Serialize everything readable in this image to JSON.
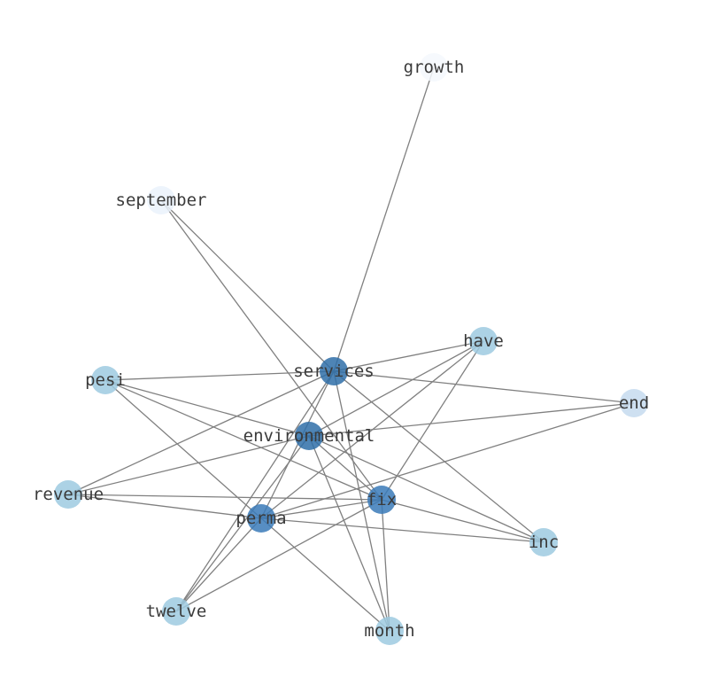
{
  "graph": {
    "nodes": [
      {
        "id": "growth",
        "label": "growth",
        "color": "#f4f8fd"
      },
      {
        "id": "september",
        "label": "september",
        "color": "#eaf2fb"
      },
      {
        "id": "have",
        "label": "have",
        "color": "#9ecae1"
      },
      {
        "id": "services",
        "label": "services",
        "color": "#2f6ea8"
      },
      {
        "id": "pesi",
        "label": "pesi",
        "color": "#9ecae1"
      },
      {
        "id": "end",
        "label": "end",
        "color": "#c6dbef"
      },
      {
        "id": "environmental",
        "label": "environmental",
        "color": "#2f6ea8"
      },
      {
        "id": "revenue",
        "label": "revenue",
        "color": "#9ecae1"
      },
      {
        "id": "fix",
        "label": "fix",
        "color": "#3a7ab8"
      },
      {
        "id": "perma",
        "label": "perma",
        "color": "#3a7ab8"
      },
      {
        "id": "inc",
        "label": "inc",
        "color": "#9ecae1"
      },
      {
        "id": "twelve",
        "label": "twelve",
        "color": "#9ecae1"
      },
      {
        "id": "month",
        "label": "month",
        "color": "#9ecae1"
      }
    ],
    "edges": [
      [
        "growth",
        "services"
      ],
      [
        "september",
        "services"
      ],
      [
        "september",
        "fix"
      ],
      [
        "services",
        "pesi"
      ],
      [
        "services",
        "have"
      ],
      [
        "services",
        "end"
      ],
      [
        "services",
        "revenue"
      ],
      [
        "services",
        "inc"
      ],
      [
        "services",
        "month"
      ],
      [
        "services",
        "twelve"
      ],
      [
        "services",
        "perma"
      ],
      [
        "have",
        "fix"
      ],
      [
        "have",
        "perma"
      ],
      [
        "have",
        "environmental"
      ],
      [
        "end",
        "environmental"
      ],
      [
        "end",
        "perma"
      ],
      [
        "pesi",
        "environmental"
      ],
      [
        "pesi",
        "fix"
      ],
      [
        "pesi",
        "perma"
      ],
      [
        "revenue",
        "environmental"
      ],
      [
        "revenue",
        "fix"
      ],
      [
        "revenue",
        "perma"
      ],
      [
        "environmental",
        "fix"
      ],
      [
        "environmental",
        "inc"
      ],
      [
        "environmental",
        "twelve"
      ],
      [
        "environmental",
        "month"
      ],
      [
        "fix",
        "perma"
      ],
      [
        "fix",
        "inc"
      ],
      [
        "fix",
        "month"
      ],
      [
        "fix",
        "twelve"
      ],
      [
        "perma",
        "inc"
      ],
      [
        "perma",
        "month"
      ],
      [
        "perma",
        "twelve"
      ]
    ]
  }
}
